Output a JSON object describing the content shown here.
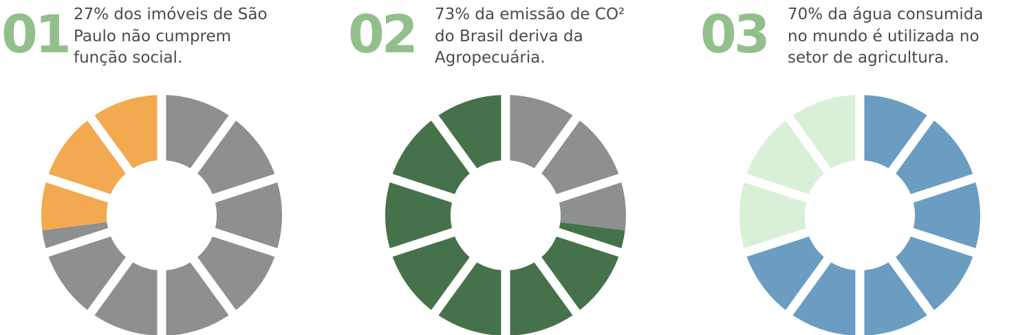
{
  "colors": {
    "number": "#93bf8c",
    "text": "#4a4a4a",
    "rest": "#8e8f90",
    "gap": "#ffffff"
  },
  "chart_data": [
    {
      "type": "pie",
      "number": "01",
      "caption_lines": [
        "27% dos imóveis de São",
        "Paulo não cumprem",
        "função social."
      ],
      "highlight_pct": 27,
      "rest_pct": 73,
      "highlight_color": "#f2a94f",
      "rest_color": "#8e8f90",
      "highlight_region": "left",
      "segments": 10
    },
    {
      "type": "pie",
      "number": "02",
      "caption_lines": [
        "73% da emissão de CO²",
        "do Brasil deriva da",
        "Agropecuária."
      ],
      "highlight_pct": 73,
      "rest_pct": 27,
      "highlight_color": "#45724a",
      "rest_color": "#8e8f90",
      "highlight_region": "left",
      "segments": 10
    },
    {
      "type": "pie",
      "number": "03",
      "caption_lines": [
        "70% da água consumida",
        "no mundo é utilizada no",
        "setor de agricultura."
      ],
      "highlight_pct": 70,
      "rest_pct": 30,
      "highlight_color": "#6b9dc2",
      "rest_color": "#d8f0d7",
      "highlight_region": "right",
      "segments": 10
    }
  ]
}
